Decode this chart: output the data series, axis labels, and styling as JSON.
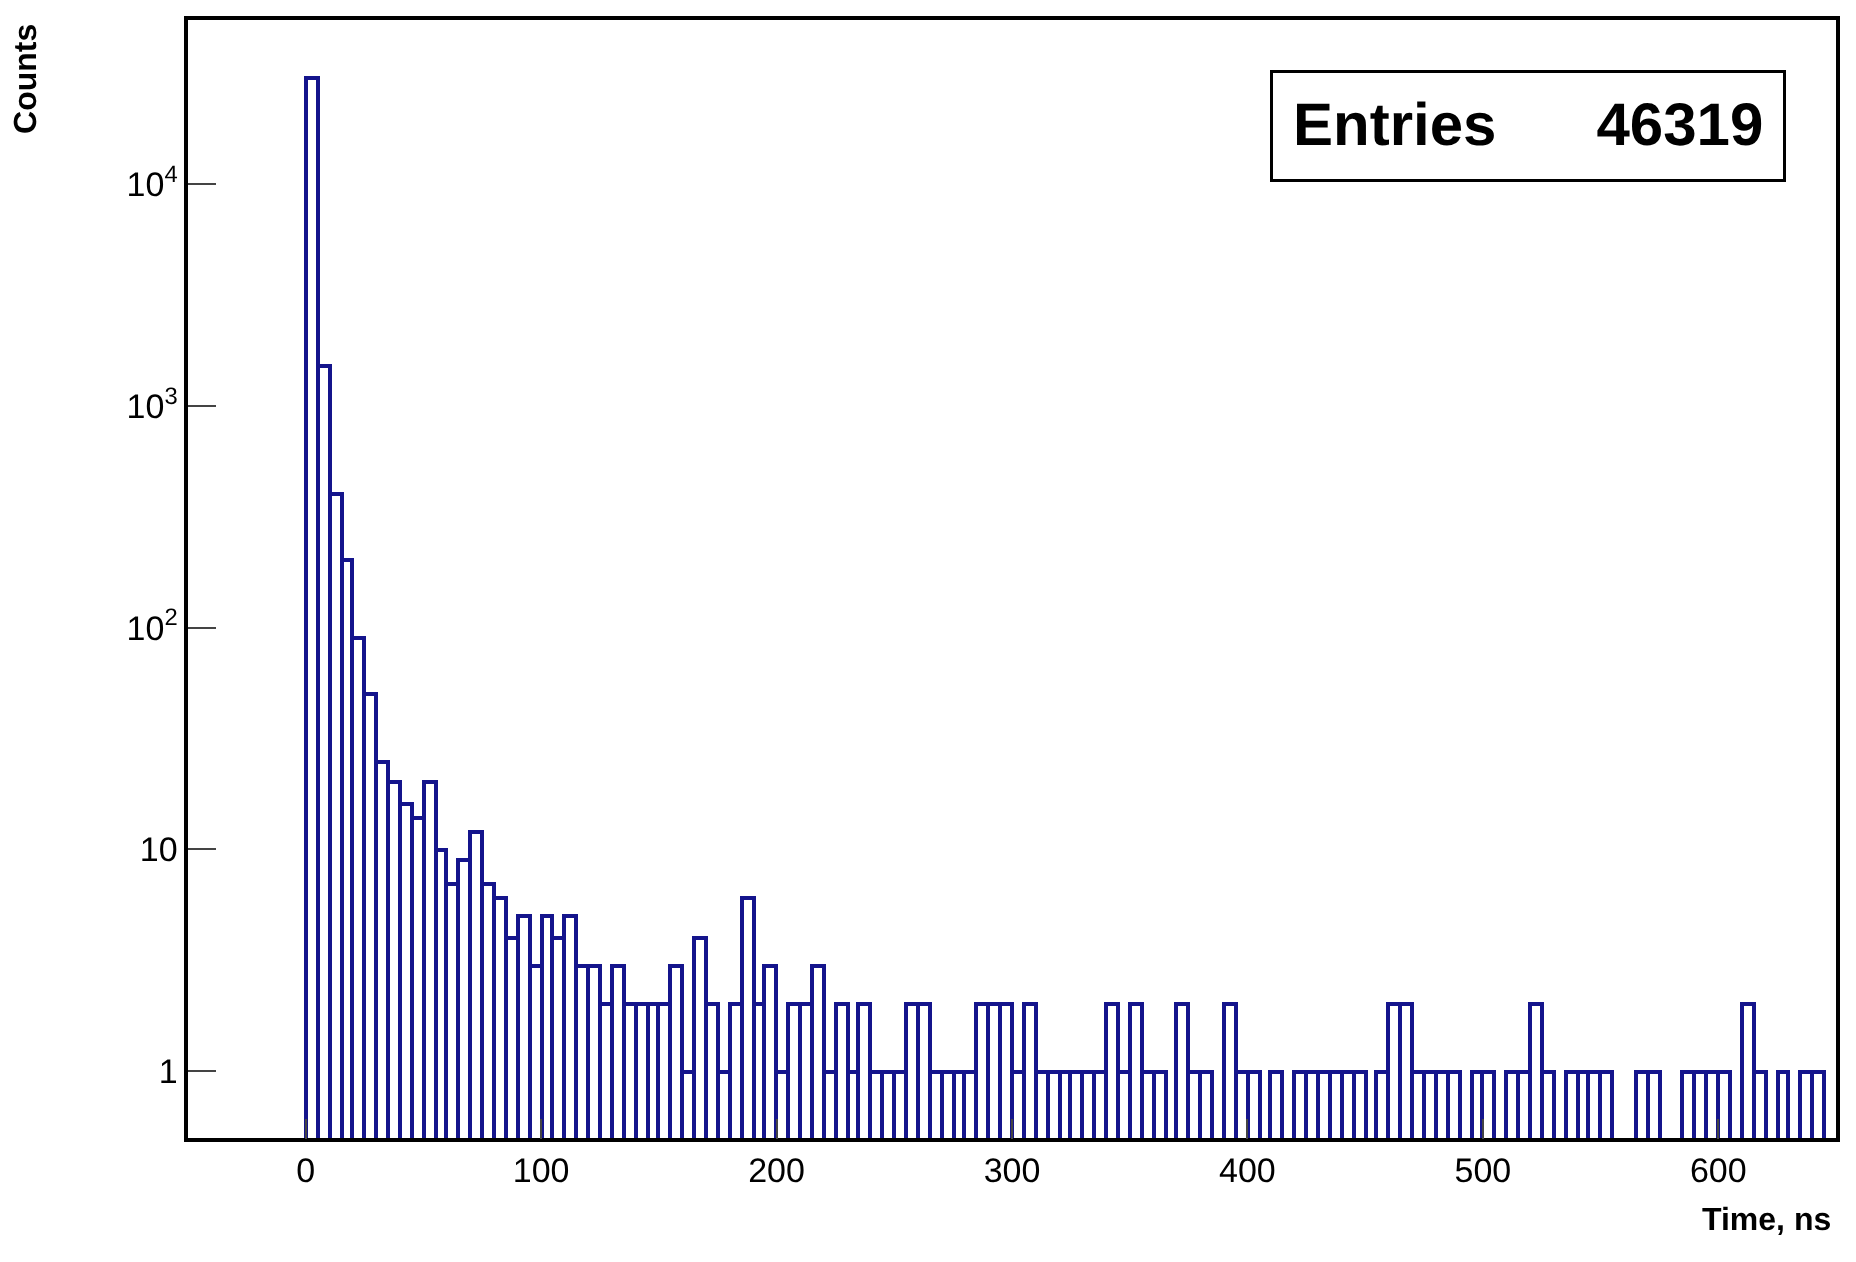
{
  "chart_data": {
    "type": "histogram",
    "xlabel": "Time, ns",
    "ylabel": "Counts",
    "annotations": [
      "Entries      46319"
    ],
    "color": "#14148c",
    "bins": [
      0,
      5,
      10,
      15,
      20,
      25,
      30,
      35,
      40,
      45,
      50,
      55,
      60,
      65,
      70,
      75,
      80,
      85,
      90,
      95,
      100,
      105,
      110,
      115,
      120,
      125,
      130,
      135,
      140,
      145,
      150,
      155,
      160,
      165,
      170,
      175,
      180,
      185,
      190,
      195,
      200,
      205,
      210,
      215,
      220,
      225,
      230,
      235,
      240,
      245,
      250,
      255,
      260,
      265,
      270,
      275,
      280,
      285,
      290,
      295,
      300,
      305,
      310,
      315,
      320,
      325,
      330,
      335,
      340,
      345,
      350,
      355,
      360,
      365,
      370,
      375,
      380,
      385,
      390,
      395,
      400,
      405,
      410,
      415,
      420,
      425,
      430,
      435,
      440,
      445,
      450,
      455,
      460,
      465,
      470,
      475,
      480,
      485,
      490,
      495,
      500,
      505,
      510,
      515,
      520,
      525,
      530,
      535,
      540,
      545,
      550,
      555,
      560,
      565,
      570,
      575,
      580,
      585,
      590,
      595,
      600,
      605,
      610,
      615,
      620,
      625,
      630,
      635,
      640,
      645,
      650
    ],
    "values": [
      30000,
      1500,
      400,
      200,
      90,
      50,
      25,
      20,
      16,
      14,
      20,
      10,
      7,
      9,
      12,
      7,
      6,
      4,
      5,
      3,
      5,
      4,
      5,
      3,
      3,
      2,
      3,
      2,
      2,
      2,
      2,
      3,
      1,
      4,
      2,
      1,
      2,
      6,
      2,
      3,
      1,
      2,
      2,
      3,
      1,
      2,
      1,
      2,
      1,
      1,
      1,
      2,
      2,
      1,
      1,
      1,
      1,
      2,
      2,
      2,
      1,
      2,
      1,
      1,
      1,
      1,
      1,
      1,
      2,
      1,
      2,
      1,
      1,
      null,
      2,
      1,
      1,
      null,
      2,
      1,
      1,
      null,
      1,
      null,
      1,
      1,
      1,
      1,
      1,
      1,
      null,
      1,
      2,
      2,
      1,
      1,
      1,
      1,
      null,
      1,
      1,
      null,
      1,
      1,
      2,
      1,
      null,
      1,
      1,
      1,
      1,
      null,
      null,
      1,
      1,
      null,
      null,
      1,
      1,
      1,
      1,
      null,
      2,
      1,
      null,
      1,
      null,
      1,
      1,
      null
    ],
    "xlim": [
      -50,
      650
    ],
    "xticks": [
      0,
      100,
      200,
      300,
      400,
      500,
      600
    ],
    "ylim": [
      0.5,
      55000
    ],
    "yticks": [
      1,
      10,
      {
        "value": 100,
        "label": "10$^{2}$"
      },
      {
        "value": 1000,
        "label": "10$^{3}$"
      },
      {
        "value": 10000,
        "label": "10$^{4}$"
      }
    ],
    "log": true
  }
}
